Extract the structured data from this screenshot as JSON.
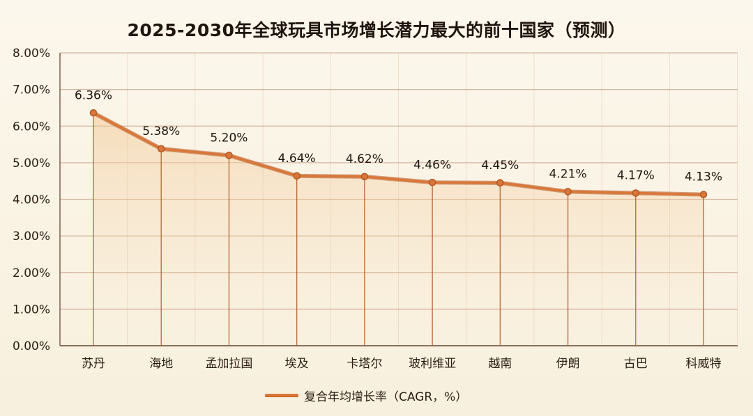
{
  "chart_data": {
    "type": "line",
    "title": "2025-2030年全球玩具市场增长潜力最大的前十国家（预测）",
    "categories": [
      "苏丹",
      "海地",
      "孟加拉国",
      "埃及",
      "卡塔尔",
      "玻利维亚",
      "越南",
      "伊朗",
      "古巴",
      "科威特"
    ],
    "series": [
      {
        "name": "复合年均增长率（CAGR，%）",
        "values": [
          6.36,
          5.38,
          5.2,
          4.64,
          4.62,
          4.46,
          4.45,
          4.21,
          4.17,
          4.13
        ],
        "data_labels": [
          "6.36%",
          "5.38%",
          "5.20%",
          "4.64%",
          "4.62%",
          "4.46%",
          "4.45%",
          "4.21%",
          "4.17%",
          "4.13%"
        ]
      }
    ],
    "ylim": [
      0,
      8
    ],
    "yticks": [
      0,
      1,
      2,
      3,
      4,
      5,
      6,
      7,
      8
    ],
    "ytick_labels": [
      "0.00%",
      "1.00%",
      "2.00%",
      "3.00%",
      "4.00%",
      "5.00%",
      "6.00%",
      "7.00%",
      "8.00%"
    ],
    "grid": true,
    "legend_position": "bottom-center",
    "colors": {
      "line": "#d9773a",
      "line_dark": "#b55a24",
      "grid": "#c9a088",
      "axis": "#6b4a36"
    }
  }
}
